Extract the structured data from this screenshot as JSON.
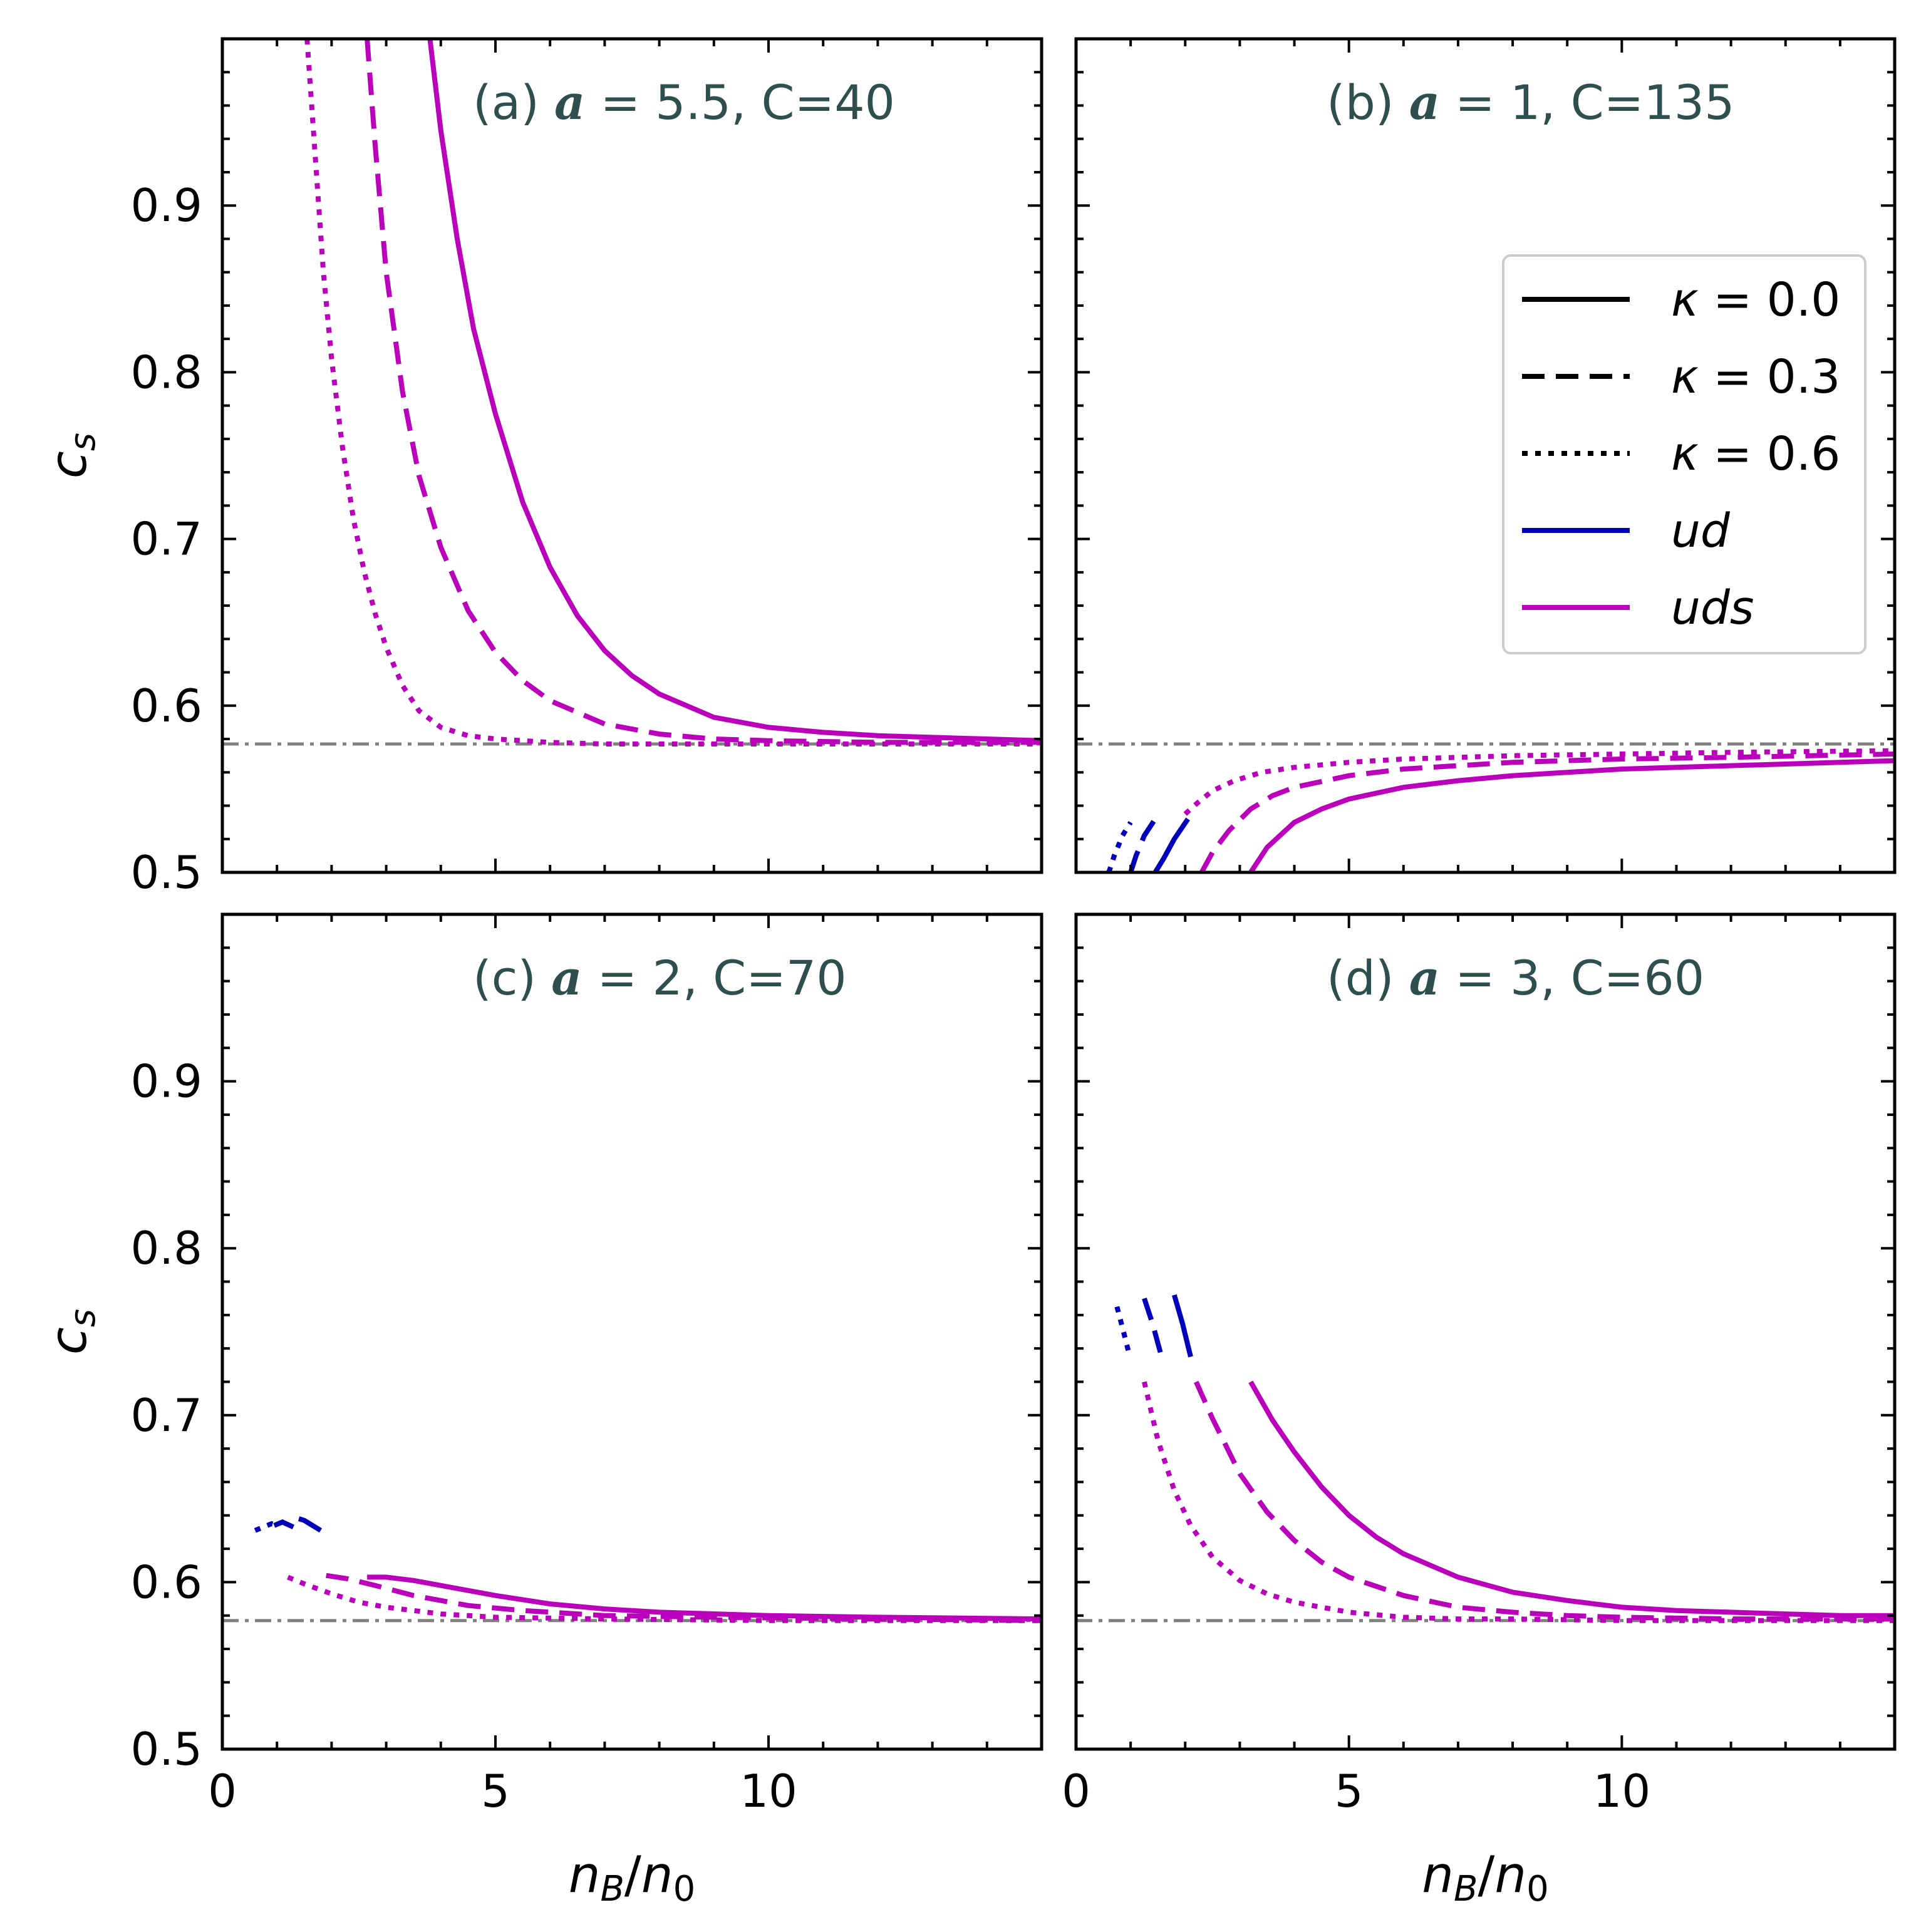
{
  "colors": {
    "ud": "#0000bb",
    "uds": "#bb00bb",
    "reference": "#808080",
    "annotation": "#2f4f4f",
    "axis": "#000000"
  },
  "y_axis_label": {
    "main": "c",
    "sub": "s"
  },
  "x_axis_label": {
    "main1": "n",
    "sub1": "B",
    "slash": "/",
    "main2": "n",
    "sub2": "0"
  },
  "legend": {
    "placement": "upper-right of panel (b)",
    "entries": [
      {
        "kind": "linestyle",
        "style": "solid",
        "pre": "κ",
        "post": " = 0.0"
      },
      {
        "kind": "linestyle",
        "style": "dashed",
        "pre": "κ",
        "post": " = 0.3"
      },
      {
        "kind": "linestyle",
        "style": "dotted",
        "pre": "κ",
        "post": " = 0.6"
      },
      {
        "kind": "color",
        "series": "ud",
        "label": "ud"
      },
      {
        "kind": "color",
        "series": "uds",
        "label": "uds"
      }
    ]
  },
  "chart_data": [
    {
      "type": "line",
      "panel": "a",
      "title": {
        "pre": "(a) ",
        "sym": "a",
        "post": " = 5.5, C=40"
      },
      "xlabel": "n_B/n_0",
      "ylabel": "c_s",
      "xlim": [
        0,
        15
      ],
      "ylim": [
        0.5,
        1.0
      ],
      "xticks": [
        0,
        5,
        10
      ],
      "yticks": [
        0.5,
        0.6,
        0.7,
        0.8,
        0.9
      ],
      "reference_line": {
        "y": 0.577,
        "style": "dashdot"
      },
      "series": [
        {
          "name": "uds κ=0.0",
          "color": "uds",
          "style": "solid",
          "x": [
            3.8,
            4.0,
            4.3,
            4.6,
            5.0,
            5.5,
            6.0,
            6.5,
            7.0,
            7.5,
            8.0,
            9.0,
            10.0,
            11.0,
            12.0,
            13.0,
            14.0,
            15.0
          ],
          "y": [
            1.0,
            0.945,
            0.88,
            0.826,
            0.775,
            0.722,
            0.683,
            0.654,
            0.633,
            0.618,
            0.607,
            0.593,
            0.587,
            0.584,
            0.582,
            0.581,
            0.58,
            0.579
          ]
        },
        {
          "name": "uds κ=0.3",
          "color": "uds",
          "style": "dashed",
          "x": [
            2.65,
            2.8,
            3.0,
            3.3,
            3.6,
            4.0,
            4.5,
            5.0,
            5.5,
            6.0,
            7.0,
            8.0,
            9.0,
            10.0,
            12.0,
            15.0
          ],
          "y": [
            1.0,
            0.935,
            0.86,
            0.788,
            0.738,
            0.695,
            0.657,
            0.632,
            0.615,
            0.603,
            0.589,
            0.583,
            0.58,
            0.579,
            0.578,
            0.578
          ]
        },
        {
          "name": "uds κ=0.6",
          "color": "uds",
          "style": "dotted",
          "x": [
            1.55,
            1.7,
            1.85,
            2.0,
            2.2,
            2.4,
            2.6,
            2.8,
            3.0,
            3.3,
            3.6,
            4.0,
            4.5,
            5.0,
            6.0,
            7.0,
            8.0,
            10.0,
            15.0
          ],
          "y": [
            1.0,
            0.93,
            0.86,
            0.808,
            0.755,
            0.712,
            0.68,
            0.655,
            0.635,
            0.612,
            0.597,
            0.587,
            0.582,
            0.58,
            0.578,
            0.577,
            0.577,
            0.577,
            0.577
          ]
        }
      ]
    },
    {
      "type": "line",
      "panel": "b",
      "title": {
        "pre": "(b) ",
        "sym": "a",
        "post": " = 1, C=135"
      },
      "xlabel": "n_B/n_0",
      "ylabel": "c_s",
      "xlim": [
        0,
        15
      ],
      "ylim": [
        0.5,
        1.0
      ],
      "xticks": [
        0,
        5,
        10
      ],
      "yticks": [
        0.5,
        0.6,
        0.7,
        0.8,
        0.9
      ],
      "reference_line": {
        "y": 0.577,
        "style": "dashdot"
      },
      "series": [
        {
          "name": "ud κ=0.0",
          "color": "ud",
          "style": "solid",
          "x": [
            1.45,
            1.6,
            1.8,
            2.05
          ],
          "y": [
            0.5,
            0.508,
            0.52,
            0.532
          ]
        },
        {
          "name": "ud κ=0.3",
          "color": "ud",
          "style": "dashed",
          "x": [
            1.0,
            1.1,
            1.25,
            1.45
          ],
          "y": [
            0.5,
            0.51,
            0.522,
            0.532
          ]
        },
        {
          "name": "ud κ=0.6",
          "color": "ud",
          "style": "dotted",
          "x": [
            0.6,
            0.7,
            0.85,
            1.0
          ],
          "y": [
            0.5,
            0.51,
            0.522,
            0.53
          ]
        },
        {
          "name": "uds κ=0.0",
          "color": "uds",
          "style": "solid",
          "x": [
            3.2,
            3.5,
            4.0,
            4.5,
            5.0,
            6.0,
            7.0,
            8.0,
            9.0,
            10.0,
            11.0,
            12.0,
            13.0,
            14.0,
            15.0
          ],
          "y": [
            0.5,
            0.515,
            0.53,
            0.538,
            0.544,
            0.551,
            0.555,
            0.558,
            0.56,
            0.562,
            0.563,
            0.564,
            0.565,
            0.566,
            0.567
          ]
        },
        {
          "name": "uds κ=0.3",
          "color": "uds",
          "style": "dashed",
          "x": [
            2.3,
            2.5,
            2.8,
            3.2,
            3.6,
            4.0,
            5.0,
            6.0,
            7.0,
            8.0,
            9.0,
            10.0,
            12.0,
            15.0
          ],
          "y": [
            0.5,
            0.512,
            0.525,
            0.538,
            0.546,
            0.551,
            0.558,
            0.562,
            0.564,
            0.566,
            0.567,
            0.568,
            0.569,
            0.571
          ]
        },
        {
          "name": "uds κ=0.6",
          "color": "uds",
          "style": "dotted",
          "x": [
            2.0,
            2.2,
            2.5,
            2.9,
            3.4,
            4.0,
            5.0,
            6.0,
            8.0,
            10.0,
            12.0,
            15.0
          ],
          "y": [
            0.535,
            0.541,
            0.549,
            0.555,
            0.56,
            0.563,
            0.566,
            0.568,
            0.57,
            0.571,
            0.572,
            0.573
          ]
        }
      ]
    },
    {
      "type": "line",
      "panel": "c",
      "title": {
        "pre": "(c) ",
        "sym": "a",
        "post": " = 2, C=70"
      },
      "xlabel": "n_B/n_0",
      "ylabel": "c_s",
      "xlim": [
        0,
        15
      ],
      "ylim": [
        0.5,
        1.0
      ],
      "xticks": [
        0,
        5,
        10
      ],
      "yticks": [
        0.5,
        0.6,
        0.7,
        0.8,
        0.9
      ],
      "reference_line": {
        "y": 0.577,
        "style": "dashdot"
      },
      "series": [
        {
          "name": "ud κ=0.0",
          "color": "ud",
          "style": "solid",
          "x": [
            1.4,
            1.5,
            1.65,
            1.8
          ],
          "y": [
            0.638,
            0.637,
            0.634,
            0.631
          ]
        },
        {
          "name": "ud κ=0.3",
          "color": "ud",
          "style": "dashed",
          "x": [
            0.95,
            1.1,
            1.3
          ],
          "y": [
            0.634,
            0.636,
            0.633
          ]
        },
        {
          "name": "ud κ=0.6",
          "color": "ud",
          "style": "dotted",
          "x": [
            0.6,
            0.75,
            0.9,
            1.0
          ],
          "y": [
            0.631,
            0.633,
            0.635,
            0.634
          ]
        },
        {
          "name": "uds κ=0.0",
          "color": "uds",
          "style": "solid",
          "x": [
            2.65,
            3.0,
            3.5,
            4.0,
            5.0,
            6.0,
            7.0,
            8.0,
            10.0,
            12.0,
            15.0
          ],
          "y": [
            0.603,
            0.603,
            0.601,
            0.598,
            0.592,
            0.587,
            0.584,
            0.582,
            0.58,
            0.579,
            0.578
          ]
        },
        {
          "name": "uds κ=0.3",
          "color": "uds",
          "style": "dashed",
          "x": [
            1.9,
            2.3,
            2.8,
            3.5,
            4.5,
            5.5,
            7.0,
            9.0,
            12.0,
            15.0
          ],
          "y": [
            0.604,
            0.602,
            0.598,
            0.592,
            0.586,
            0.583,
            0.58,
            0.579,
            0.578,
            0.577
          ]
        },
        {
          "name": "uds κ=0.6",
          "color": "uds",
          "style": "dotted",
          "x": [
            1.2,
            1.5,
            2.0,
            2.5,
            3.0,
            4.0,
            5.0,
            7.0,
            10.0,
            15.0
          ],
          "y": [
            0.603,
            0.599,
            0.593,
            0.588,
            0.585,
            0.581,
            0.579,
            0.578,
            0.577,
            0.577
          ]
        }
      ]
    },
    {
      "type": "line",
      "panel": "d",
      "title": {
        "pre": "(d) ",
        "sym": "a",
        "post": " = 3, C=60"
      },
      "xlabel": "n_B/n_0",
      "ylabel": "c_s",
      "xlim": [
        0,
        15
      ],
      "ylim": [
        0.5,
        1.0
      ],
      "xticks": [
        0,
        5,
        10
      ],
      "yticks": [
        0.5,
        0.6,
        0.7,
        0.8,
        0.9
      ],
      "reference_line": {
        "y": 0.577,
        "style": "dashdot"
      },
      "series": [
        {
          "name": "ud κ=0.0",
          "color": "ud",
          "style": "solid",
          "x": [
            1.8,
            1.95,
            2.1
          ],
          "y": [
            0.772,
            0.755,
            0.735
          ]
        },
        {
          "name": "ud κ=0.3",
          "color": "ud",
          "style": "dashed",
          "x": [
            1.25,
            1.4,
            1.55
          ],
          "y": [
            0.77,
            0.755,
            0.737
          ]
        },
        {
          "name": "ud κ=0.6",
          "color": "ud",
          "style": "dotted",
          "x": [
            0.75,
            0.87,
            0.97
          ],
          "y": [
            0.765,
            0.75,
            0.737
          ]
        },
        {
          "name": "uds κ=0.0",
          "color": "uds",
          "style": "solid",
          "x": [
            3.2,
            3.6,
            4.0,
            4.5,
            5.0,
            5.5,
            6.0,
            7.0,
            8.0,
            9.0,
            10.0,
            11.0,
            12.0,
            13.0,
            14.0,
            15.0
          ],
          "y": [
            0.72,
            0.697,
            0.678,
            0.657,
            0.64,
            0.627,
            0.617,
            0.603,
            0.594,
            0.589,
            0.585,
            0.583,
            0.582,
            0.581,
            0.58,
            0.58
          ]
        },
        {
          "name": "uds κ=0.3",
          "color": "uds",
          "style": "dashed",
          "x": [
            2.2,
            2.5,
            3.0,
            3.5,
            4.0,
            4.5,
            5.0,
            6.0,
            7.0,
            8.0,
            9.0,
            10.0,
            12.0,
            15.0
          ],
          "y": [
            0.72,
            0.698,
            0.665,
            0.642,
            0.625,
            0.612,
            0.603,
            0.592,
            0.585,
            0.582,
            0.58,
            0.579,
            0.578,
            0.578
          ]
        },
        {
          "name": "uds κ=0.6",
          "color": "uds",
          "style": "dotted",
          "x": [
            1.25,
            1.5,
            1.8,
            2.1,
            2.5,
            3.0,
            3.5,
            4.0,
            5.0,
            6.0,
            7.0,
            8.0,
            10.0,
            15.0
          ],
          "y": [
            0.72,
            0.685,
            0.655,
            0.634,
            0.615,
            0.601,
            0.593,
            0.588,
            0.582,
            0.579,
            0.578,
            0.578,
            0.577,
            0.577
          ]
        }
      ]
    }
  ]
}
